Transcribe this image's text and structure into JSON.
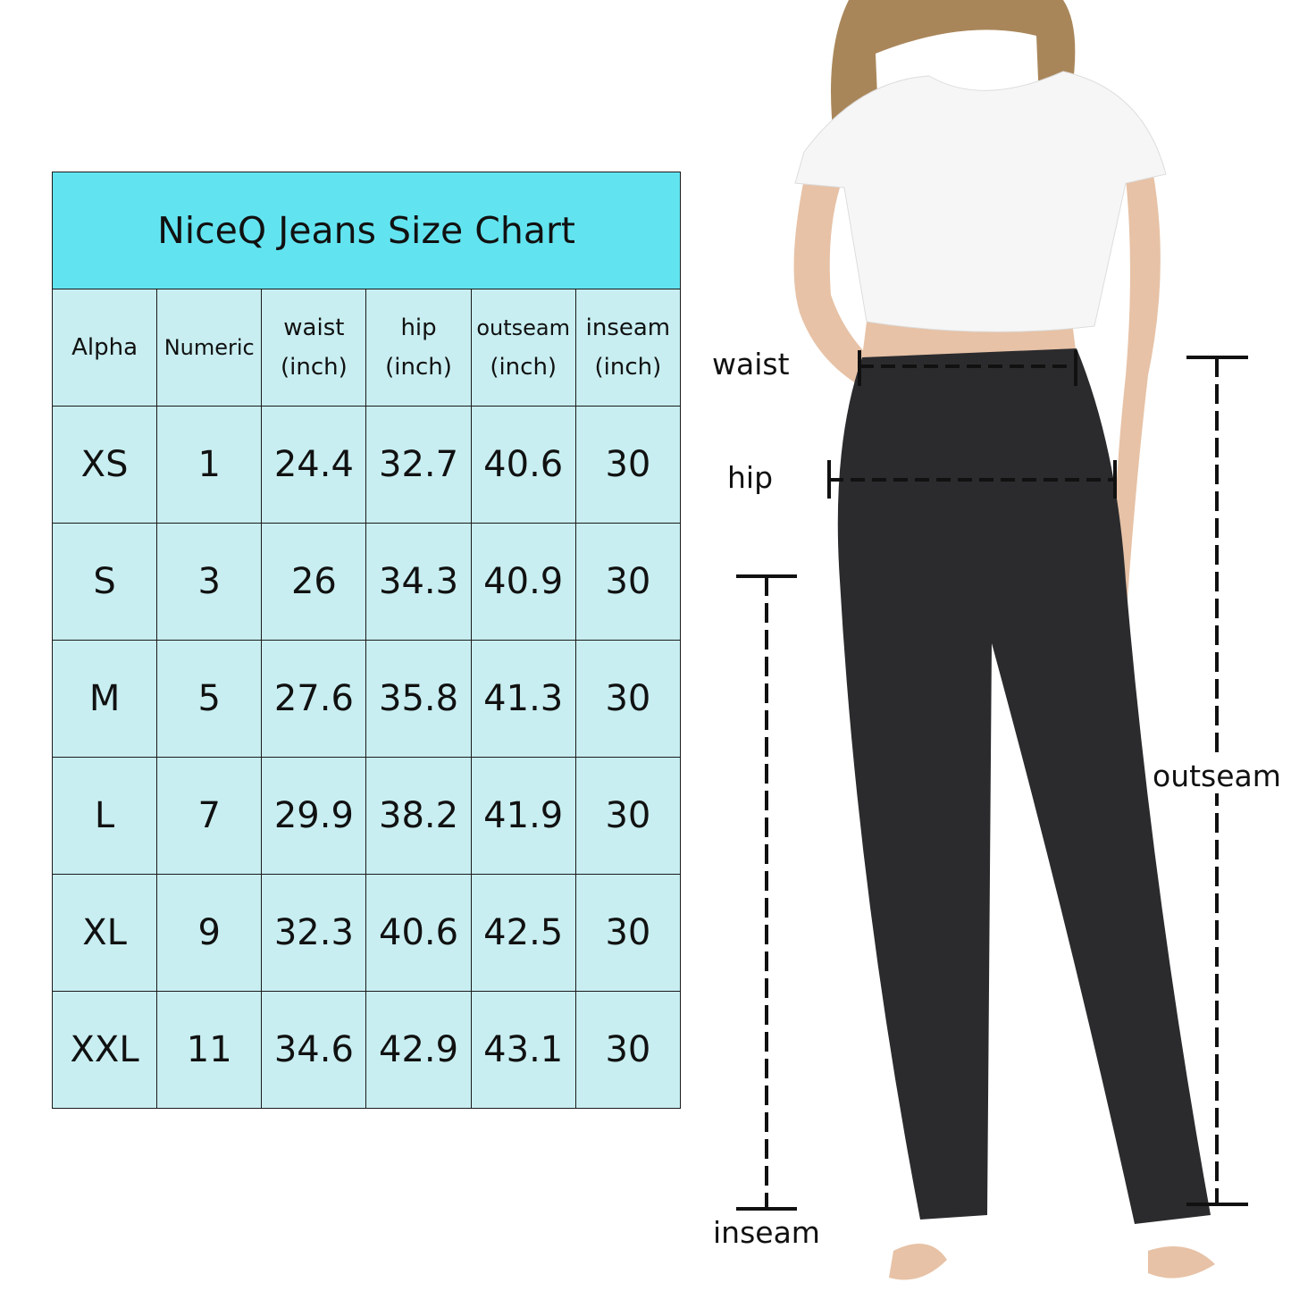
{
  "title": "NiceQ Jeans Size Chart",
  "colors": {
    "title_bg": "#62E4F0",
    "cell_bg": "#C8EEF1"
  },
  "headers": [
    {
      "line1": "Alpha",
      "line2": ""
    },
    {
      "line1": "Numeric",
      "line2": ""
    },
    {
      "line1": "waist",
      "line2": "(inch)"
    },
    {
      "line1": "hip",
      "line2": "(inch)"
    },
    {
      "line1": "outseam",
      "line2": "(inch)"
    },
    {
      "line1": "inseam",
      "line2": "(inch)"
    }
  ],
  "rows": [
    [
      "XS",
      "1",
      "24.4",
      "32.7",
      "40.6",
      "30"
    ],
    [
      "S",
      "3",
      "26",
      "34.3",
      "40.9",
      "30"
    ],
    [
      "M",
      "5",
      "27.6",
      "35.8",
      "41.3",
      "30"
    ],
    [
      "L",
      "7",
      "29.9",
      "38.2",
      "41.9",
      "30"
    ],
    [
      "XL",
      "9",
      "32.3",
      "40.6",
      "42.5",
      "30"
    ],
    [
      "XXL",
      "11",
      "34.6",
      "42.9",
      "43.1",
      "30"
    ]
  ],
  "measure_labels": {
    "waist": "waist",
    "hip": "hip",
    "outseam": "outseam",
    "inseam": "inseam"
  }
}
